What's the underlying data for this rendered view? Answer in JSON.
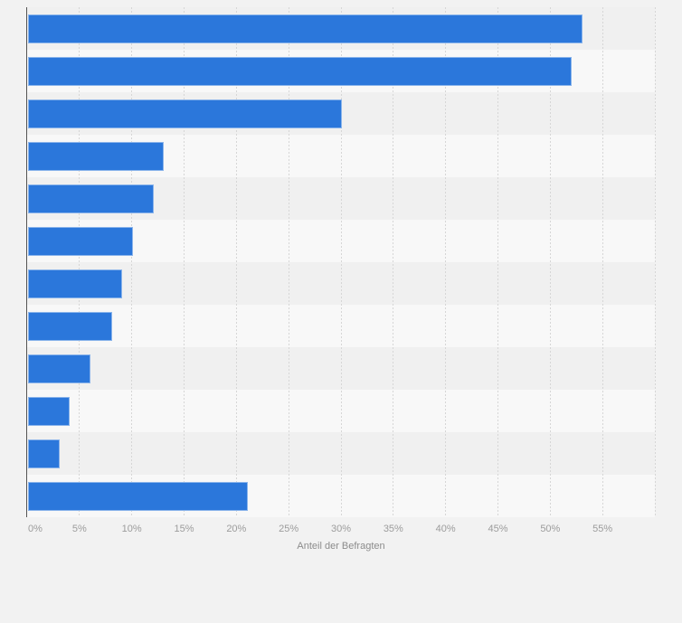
{
  "page": {
    "background_color": "#f2f2f2"
  },
  "chart_data": {
    "type": "bar",
    "orientation": "horizontal",
    "title": "",
    "categories": [
      "",
      "",
      "",
      "",
      "",
      "",
      "",
      "",
      "",
      "",
      "",
      ""
    ],
    "values": [
      53,
      52,
      30,
      13,
      12,
      10,
      9,
      8,
      6,
      4,
      3,
      21
    ],
    "value_unit": "%",
    "xlabel": "Anteil der Befragten",
    "ylabel": "",
    "xlim": [
      0,
      60
    ],
    "x_tick_values": [
      0,
      5,
      10,
      15,
      20,
      25,
      30,
      35,
      40,
      45,
      50,
      55
    ],
    "x_tick_labels": [
      "0%",
      "5%",
      "10%",
      "15%",
      "20%",
      "25%",
      "30%",
      "35%",
      "40%",
      "45%",
      "50%",
      "55%"
    ],
    "gridline_values": [
      5,
      10,
      15,
      20,
      25,
      30,
      35,
      40,
      45,
      50,
      55,
      60
    ],
    "grid": "vertical-dashed",
    "legend": "none",
    "colors": {
      "bar": "#2b77db",
      "band_odd": "#f0f0f0",
      "band_even": "#f8f8f8",
      "gridline": "#d6d6d6",
      "axis_line": "#545454",
      "tick_label": "#9c9c9c",
      "axis_title": "#8c8c8c",
      "background": "#f2f2f2"
    }
  }
}
